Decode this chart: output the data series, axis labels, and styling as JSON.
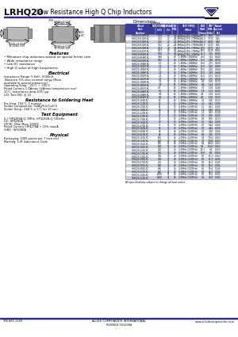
{
  "title_bold": "LRHQ20",
  "title_normal": "Low Resistance High Q Chip Inductors",
  "bg_color": "#ffffff",
  "header_blue": "#2b2b8c",
  "table_header_blue": "#3a3a9a",
  "table_row_light": "#c8cce0",
  "table_row_white": "#ffffff",
  "footer_blue": "#2b2b8c",
  "footer_left": "718-665-1149",
  "footer_center": "ALLIED COMPONENTS INTERNATIONAL\nREVISED 03/10/08",
  "footer_right": "www.alliedcomponents.com",
  "dimensions_label": "Dimensions:",
  "dimensions_unit": "Inches\n(mm)",
  "features_title": "Features",
  "features": [
    "Miniature chip inductors wound on special ferrite core",
    "Wide inductance range",
    "Low DC resistance",
    "High Q value at high frequencies"
  ],
  "electrical_title": "Electrical",
  "electrical_lines": [
    "Inductance Range: 5.6nH - 8200nH",
    "Tolerance: 5% over nominal range (More",
    "available in special tolerances)",
    "Operating Temp.: -25°C ~ +85°C",
    "Rated Current: 0.1Amax (@Amax temperature rise)",
    "10°C. Inductance drop 10% typ.",
    "L/Q: Test OSC @ 1V"
  ],
  "soldering_title": "Resistance to Soldering Heat",
  "soldering_lines": [
    "Pre-Heat: 150°C, 1 minute.",
    "Solder Composition: Sn/Ag/0.5/Cu/0.5",
    "Solder Temp.: 240°C ± 5°C for 10 sec."
  ],
  "test_title": "Test Equipment",
  "test_lines": [
    "(L): HP4285A @ 1MHz, HP4192A @ 100kHz",
    "(Q): HP4285A",
    "(DCR): Ohm Mate 100DC",
    "Rated Current: HP4276A + 10% max/A",
    "(SRF): HP4396A"
  ],
  "physical_title": "Physical",
  "physical_lines": [
    "Packaging: 2000 pieces per 7 inch reel.",
    "Marking: 5-/R Inductance Code"
  ],
  "note": "All specifications subject to change without notice.",
  "table_col_widths": [
    38,
    11,
    10,
    7,
    26,
    11,
    9,
    10
  ],
  "table_headers": [
    "Allied\nPart\nNumber",
    "INDUCTANCE\n(nH)",
    "TOLERANCE\n(%)",
    "Q\nMIN.",
    "TEST FREQ\n(MHz)",
    "DCR\nMAX.\n(Ohms)",
    "SRF\nMIN.\n(GHz)",
    "Rated\nCurrent\n(A)"
  ],
  "table_data": [
    [
      "LRHQ20-R10M-RC",
      "0.10",
      "20",
      "20",
      "1.8MHz@25% (70MHz)",
      "260.0",
      "8.00",
      "0.70"
    ],
    [
      "LRHQ20-R12M-RC",
      "0.12",
      "20",
      "20",
      "1.8MHz@25% (70MHz)",
      "200.0",
      "7.375",
      "0.65"
    ],
    [
      "LRHQ20-R15M-RC",
      "0.15",
      "20",
      "20",
      "1.8MHz@25% (70MHz)",
      "120.0",
      "6.625",
      "0.60"
    ],
    [
      "LRHQ20-R22M-RC",
      "0.22",
      "20",
      "20",
      "1.8MHz@25% (70MHz)",
      "100.0",
      "5.125",
      "0.55"
    ],
    [
      "LRHQ20-R33M-RC",
      "0.33",
      "20",
      "20",
      "1.8MHz@25% (70MHz)",
      "90.0",
      "0.375",
      "0.47"
    ],
    [
      "LRHQ20-R47M-RC",
      "0.47",
      "20",
      "20",
      "1.8MHz@25% (70MHz)",
      "80.0",
      "4.125",
      "0.445"
    ],
    [
      "LRHQ20-R56M-RC",
      "0.56",
      "20",
      "30",
      "1.8MHz@25% (70MHz)",
      "74.1",
      "3.25",
      "0.440"
    ],
    [
      "LRHQ20-R68M-RC",
      "0.68",
      "5,J",
      "30",
      "1.8MHz (100MHz)",
      "46.0",
      "3.12",
      "0.440"
    ],
    [
      "LRHQ20-R82M-RC",
      "0.82",
      "5,J",
      "30",
      "1.8MHz (100MHz)",
      "35.0",
      "2.88",
      "0.430"
    ],
    [
      "LRHQ20-1R0M-RC",
      "1.0",
      "5,J",
      "30",
      "1.8MHz (100MHz)",
      "30.0",
      "2.75",
      "0.420"
    ],
    [
      "LRHQ20-1R2M-RC",
      "1.2",
      "5,J",
      "30",
      "1.8MHz (100MHz)",
      "21.0",
      "2.50",
      "0.390"
    ],
    [
      "LRHQ20-1R5M-RC",
      "1.5",
      "5,J",
      "30",
      "1.8MHz (100MHz)",
      "19.0",
      "2.25",
      "0.360"
    ],
    [
      "LRHQ20-1R8M-RC",
      "1.8",
      "5,J",
      "30",
      "1.8MHz (100MHz)",
      "17.0",
      "2.19",
      "0.340"
    ],
    [
      "LRHQ20-2R2M-RC",
      "2.2",
      "5,J",
      "30",
      "1.8MHz (100MHz)",
      "15.0",
      "1.81",
      "0.320"
    ],
    [
      "LRHQ20-2R7M-RC",
      "2.7",
      "5,J",
      "30",
      "1.8MHz (100MHz)",
      "12.0",
      "1.75",
      "0.290"
    ],
    [
      "LRHQ20-3R3M-RC",
      "3.3",
      "5,J",
      "40",
      "1.8MHz (100MHz)",
      "9.0",
      "1.56",
      "0.270"
    ],
    [
      "LRHQ20-3R9M-RC",
      "3.9",
      "5,J",
      "50",
      "1.8MHz (100MHz)",
      "8.6",
      "1.44",
      "0.250"
    ],
    [
      "LRHQ20-4R7M-RC",
      "4.7",
      "5,J",
      "60",
      "1.8MHz (100MHz)",
      "7.0",
      "1.38",
      "0.240"
    ],
    [
      "LRHQ20-5R6M-RC",
      "5.6",
      "5,J",
      "60",
      "1.8MHz (100MHz)",
      "5.4",
      "1.31",
      "0.230"
    ],
    [
      "LRHQ20-6R8M-RC",
      "6.8",
      "5,J",
      "60",
      "1.8MHz (100MHz)",
      "4.9",
      "1.19",
      "0.225"
    ],
    [
      "LRHQ20-8R2M-RC",
      "8.2",
      "5,J",
      "60",
      "1.8MHz (100MHz)",
      "4.0",
      "1.06",
      "0.225"
    ],
    [
      "LRHQ20-100K-RC",
      "10",
      "5,J",
      "60",
      "1.8MHz (100MHz)",
      "3.5",
      "1.00",
      "0.213"
    ],
    [
      "LRHQ20-120K-RC",
      "12",
      "5,J",
      "70",
      "4.5MHz (100MHz)",
      "2.0",
      "0.94",
      "0.190"
    ],
    [
      "LRHQ20-150K-RC",
      "15",
      "5,J",
      "70",
      "4.5MHz (100MHz)",
      "1.5",
      "0.81",
      "0.165"
    ],
    [
      "LRHQ20-180K-RC",
      "18",
      "5,J",
      "70",
      "4.5MHz (100MHz)",
      "1.4",
      "0.69",
      "0.150"
    ],
    [
      "LRHQ20-220K-RC",
      "22",
      "5,J",
      "70",
      "4.5MHz (100MHz)",
      "1.2",
      "0.63",
      "0.138"
    ],
    [
      "LRHQ20-270K-RC",
      "27",
      "5,J",
      "70",
      "4.5MHz (100MHz)",
      "1.0",
      "0.56",
      "0.125"
    ],
    [
      "LRHQ20-330K-RC",
      "33",
      "5,J",
      "70",
      "4.5MHz (100MHz)",
      "0.8",
      "0.50",
      "0.113"
    ],
    [
      "LRHQ20-390K-RC",
      "39",
      "5,J",
      "70",
      "4.5MHz (100MHz)",
      "0.7",
      "0.44",
      "0.100"
    ],
    [
      "LRHQ20-470K-RC",
      "47",
      "5,J",
      "70",
      "4.5MHz (100MHz)",
      "0.7",
      "0.44",
      "0.100"
    ],
    [
      "LRHQ20-560K-RC",
      "56",
      "5,J",
      "70",
      "4.5MHz (100MHz)",
      "0.7",
      "4.44",
      "0.100"
    ],
    [
      "LRHQ20-680K-RC",
      "68",
      "5,J",
      "40",
      "4.5MHz (100MHz)",
      "0.7",
      "3.00",
      "0.100"
    ],
    [
      "LRHQ20-820K-RC",
      "82",
      "5,J",
      "40",
      "4.5MHz (100MHz)",
      "0.6",
      "3.00",
      "0.070"
    ],
    [
      "LRHQ20-101K-RC",
      "100",
      "5,J",
      "40",
      "4.5MHz (100MHz)",
      "5.8",
      "7.563",
      "0.063"
    ],
    [
      "LRHQ20-121K-RC",
      "120",
      "5,J",
      "40",
      "4.5MHz (100MHz)",
      "7.5",
      "7.563",
      "0.063"
    ],
    [
      "LRHQ20-151K-RC",
      "150",
      "5,J",
      "40",
      "4.5MHz (100MHz)",
      "8.1",
      "8.563",
      "0.063"
    ],
    [
      "LRHQ20-181K-RC",
      "180",
      "5,J",
      "40",
      "4.5MHz (100MHz)",
      "9.4",
      "5.563",
      "0.063"
    ],
    [
      "LRHQ20-221K-RC",
      "220",
      "5,J",
      "40",
      "4.5MHz (100MHz)",
      "10.3",
      "6.6",
      "0.063"
    ],
    [
      "LRHQ20-271K-RC",
      "270",
      "5,J",
      "40",
      "4.5MHz (100MHz)",
      "10.6",
      "8.3",
      "0.063"
    ],
    [
      "LRHQ20-331K-RC",
      "330",
      "5,J",
      "40",
      "4.5MHz (100MHz)",
      "5.0",
      "10.3",
      "0.063"
    ],
    [
      "LRHQ20-391K-RC",
      "390",
      "5,J",
      "40",
      "4.5MHz (100MHz)",
      "5.0",
      "11.3",
      "0.045"
    ],
    [
      "LRHQ20-471K-RC",
      "470",
      "5,J",
      "40",
      "4.5MHz (100MHz)",
      "5.0",
      "14.6",
      "0.045"
    ],
    [
      "LRHQ20-561K-RC",
      "560",
      "5,J",
      "40",
      "4.5MHz (100MHz)",
      "5.0",
      "16.0",
      "0.045"
    ],
    [
      "LRHQ20-681K-RC",
      "680",
      "5,J",
      "40",
      "4.5MHz (100MHz)",
      "5.0",
      "19.4",
      "0.045"
    ],
    [
      "LRHQ20-821K-RC",
      "820",
      "5,J",
      "40",
      "4.5MHz (100MHz)",
      "5.0",
      "24.0",
      "0.045"
    ],
    [
      "LRHQ20-102K-RC",
      "1000",
      "5,J",
      "40",
      "4.5MHz (100MHz)",
      "5.0",
      "30.0",
      "0.045"
    ],
    [
      "LRHQ20-122K-RC",
      "1200",
      "5,J",
      "40",
      "4.5MHz (100MHz)",
      "5.0",
      "36.0",
      "0.045"
    ]
  ]
}
